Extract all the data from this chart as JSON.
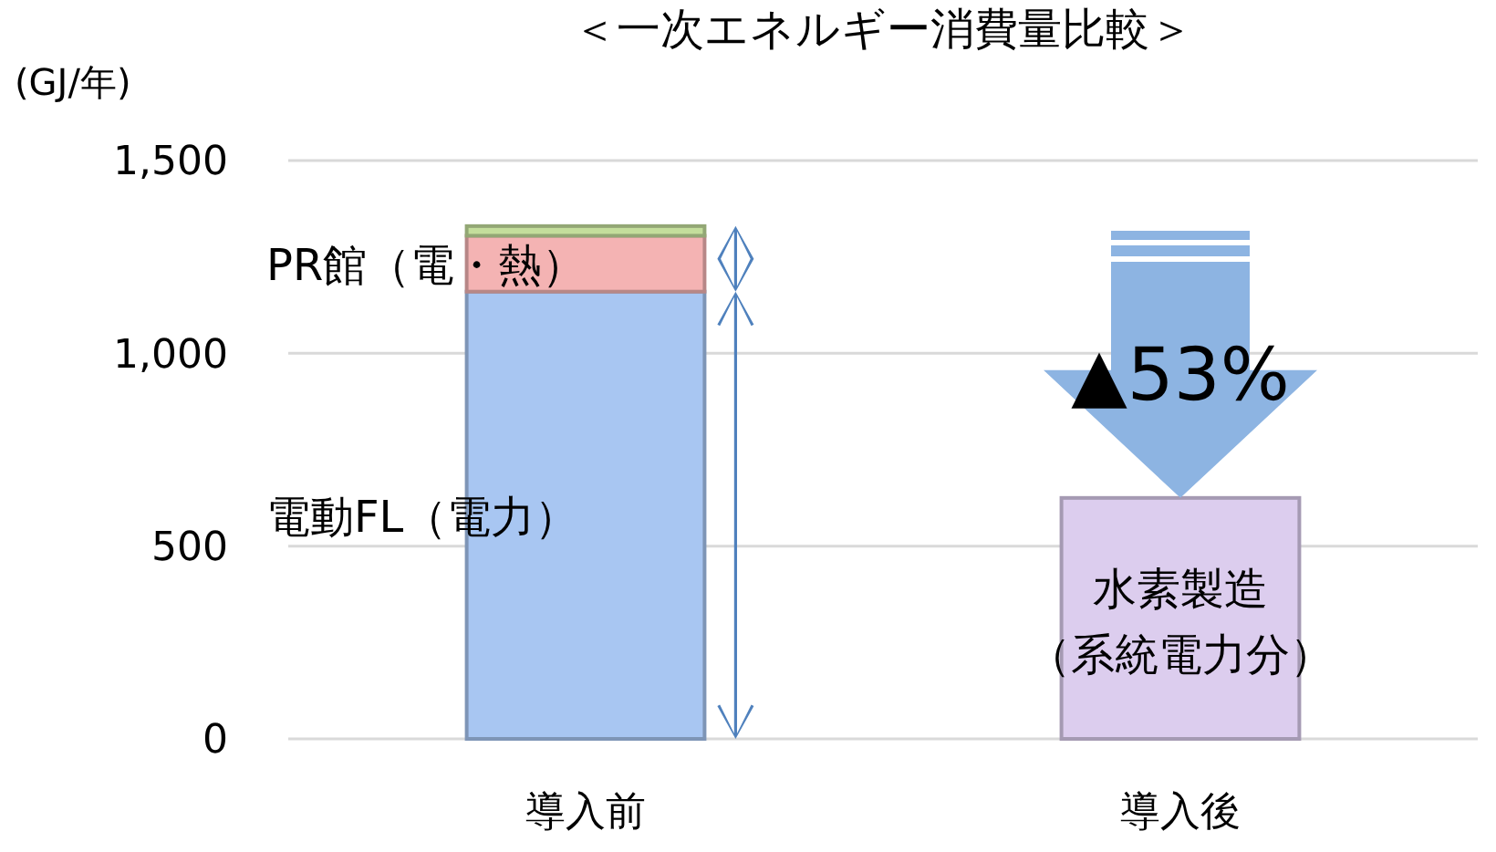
{
  "chart_data": {
    "type": "bar",
    "title": "＜一次エネルギー消費量比較＞",
    "ylabel": "(GJ/年)",
    "categories": [
      "導入前",
      "導入後"
    ],
    "stacked": true,
    "series": [
      {
        "name": "電動FL（電力）",
        "color": "#a8c6f2",
        "values": [
          1160,
          null
        ]
      },
      {
        "name": "PR館（電・熱）",
        "color": "#f4b3b3",
        "values": [
          145,
          null
        ]
      },
      {
        "color": "#c4de9c",
        "values": [
          25,
          null
        ]
      },
      {
        "name": "水素製造（系統電力分）",
        "color": "#dccdee",
        "values": [
          null,
          625
        ]
      }
    ],
    "ylim": [
      0,
      1500
    ],
    "yticks": [
      0,
      500,
      {
        "value": 1000,
        "label": "1,000"
      },
      {
        "value": 1500,
        "label": "1,500"
      }
    ],
    "grid": "y",
    "annotations": [
      "▲53%"
    ]
  }
}
